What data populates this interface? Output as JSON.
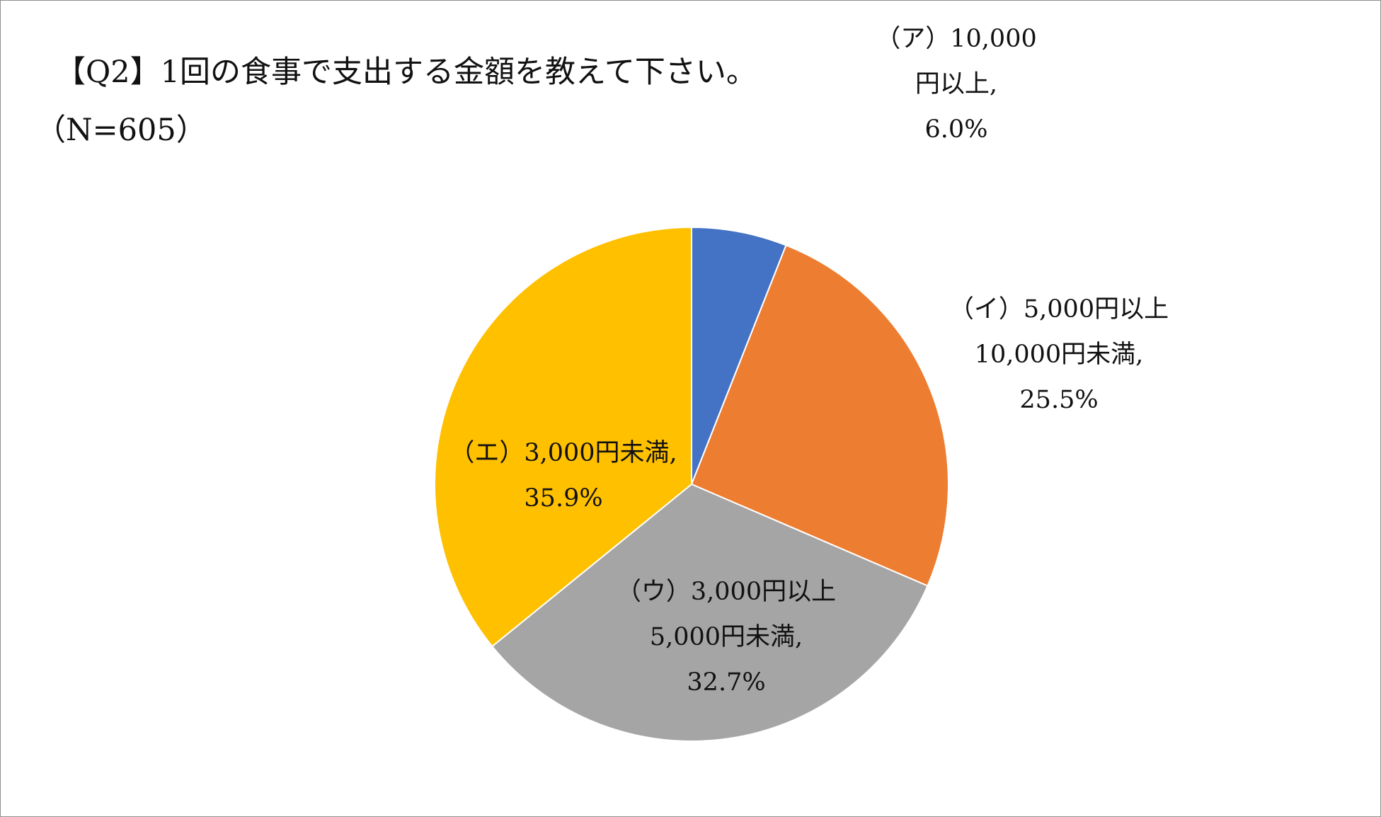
{
  "chart_data": {
    "type": "pie",
    "title": "【Q2】1回の食事で支出する金額を教えて下さい。",
    "subtitle": "（N=605）",
    "start_angle_deg": 0,
    "direction": "clockwise",
    "slices": [
      {
        "category": "（ア）10,000円以上",
        "value": 6.0,
        "value_label": "6.0%",
        "label_lines": [
          "（ア）10,000",
          "円以上,",
          "6.0%"
        ],
        "color": "#4472C4"
      },
      {
        "category": "（イ）5,000円以上10,000円未満",
        "value": 25.5,
        "value_label": "25.5%",
        "label_lines": [
          "（イ）5,000円以上",
          "10,000円未満,",
          "25.5%"
        ],
        "color": "#ED7D31"
      },
      {
        "category": "（ウ）3,000円以上5,000円未満",
        "value": 32.7,
        "value_label": "32.7%",
        "label_lines": [
          "（ウ）3,000円以上",
          "5,000円未満,",
          "32.7%"
        ],
        "color": "#A5A5A5"
      },
      {
        "category": "（エ）3,000円未満",
        "value": 35.9,
        "value_label": "35.9%",
        "label_lines": [
          "（エ）3,000円未満,",
          "35.9%"
        ],
        "color": "#FFC000"
      }
    ]
  }
}
